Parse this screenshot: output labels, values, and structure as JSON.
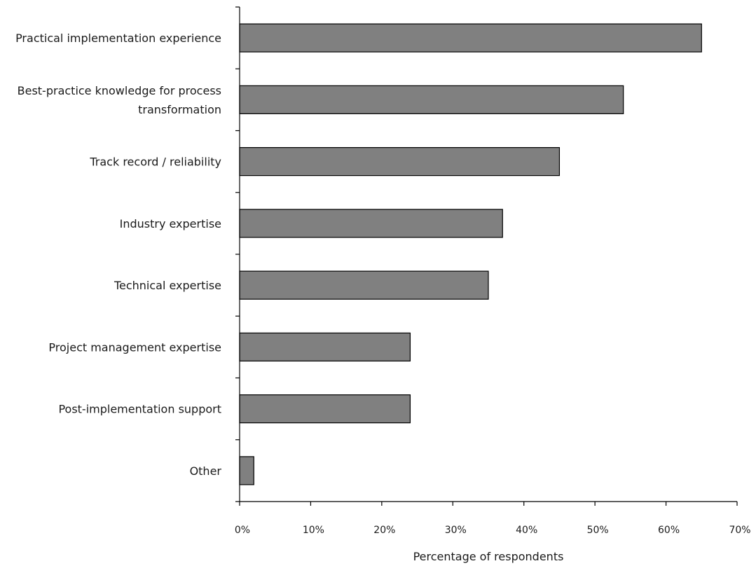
{
  "chart_data": {
    "type": "bar",
    "orientation": "horizontal",
    "categories": [
      [
        "Practical implementation experience"
      ],
      [
        "Best-practice knowledge for process",
        "transformation"
      ],
      [
        "Track record / reliability"
      ],
      [
        "Industry expertise"
      ],
      [
        "Technical expertise"
      ],
      [
        "Project management expertise"
      ],
      [
        "Post-implementation support"
      ],
      [
        "Other"
      ]
    ],
    "values": [
      65,
      54,
      45,
      37,
      35,
      24,
      24,
      2
    ],
    "title": "",
    "xlabel": "Percentage of respondents",
    "ylabel": "",
    "xlim": [
      0,
      70
    ],
    "xticks": [
      0,
      10,
      20,
      30,
      40,
      50,
      60,
      70
    ],
    "tick_labels": [
      "0%",
      "10%",
      "20%",
      "30%",
      "40%",
      "50%",
      "60%",
      "70%"
    ],
    "grid": false,
    "legend": "none",
    "bar_color": "#808080",
    "bar_stroke": "#000000"
  }
}
